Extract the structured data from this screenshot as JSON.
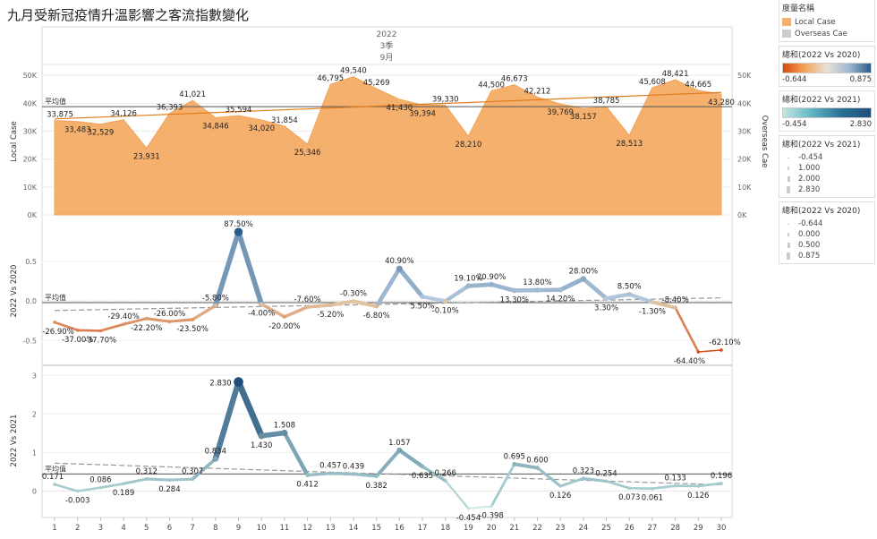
{
  "title": "九月受新冠疫情升溫影響之客流指數變化",
  "header": {
    "year": "2022",
    "quarter": "3季",
    "month": "9月"
  },
  "avg_label": "平均值",
  "colors": {
    "local_area": "#f5b06e",
    "local_area_line": "#f0a35c",
    "trend": "#e07b1a",
    "avg_line": "#555555",
    "overseas": "#cccccc"
  },
  "legend": {
    "measures_title": "度量名稱",
    "measures": [
      {
        "label": "Local Case",
        "color": "#f5b06e"
      },
      {
        "label": "Overseas Cae",
        "color": "#cccccc"
      }
    ],
    "gradient2020": {
      "title": "總和(2022 Vs 2020)",
      "min": "-0.644",
      "max": "0.875"
    },
    "gradient2021": {
      "title": "總和(2022 Vs 2021)",
      "min": "-0.454",
      "max": "2.830"
    },
    "size2021": {
      "title": "總和(2022 Vs 2021)",
      "items": [
        "-0.454",
        "1.000",
        "2.000",
        "2.830"
      ]
    },
    "size2020": {
      "title": "總和(2022 Vs 2020)",
      "items": [
        "-0.644",
        "0.000",
        "0.500",
        "0.875"
      ]
    }
  },
  "chart_data": [
    {
      "type": "area",
      "x": [
        1,
        2,
        3,
        4,
        5,
        6,
        7,
        8,
        9,
        10,
        11,
        12,
        13,
        14,
        15,
        16,
        17,
        18,
        19,
        20,
        21,
        22,
        23,
        24,
        25,
        26,
        27,
        28,
        29,
        30
      ],
      "series": [
        {
          "name": "Local Case",
          "values": [
            33875,
            33483,
            32529,
            34126,
            23931,
            36393,
            41021,
            34846,
            35594,
            34020,
            31854,
            25346,
            46795,
            49540,
            45269,
            41430,
            39394,
            39330,
            28210,
            44500,
            46673,
            42212,
            39769,
            38157,
            38785,
            28513,
            45608,
            48421,
            44665,
            43280
          ]
        }
      ],
      "labels": [
        "33,875",
        "33,483",
        "32,529",
        "34,126",
        "23,931",
        "36,393",
        "41,021",
        "34,846",
        "35,594",
        "34,020",
        "31,854",
        "25,346",
        "46,795",
        "49,540",
        "45,269",
        "41,430",
        "39,394",
        "39,330",
        "28,210",
        "44,500",
        "46,673",
        "42,212",
        "39,769",
        "38,157",
        "38,785",
        "28,513",
        "45,608",
        "48,421",
        "44,665",
        "43,280"
      ],
      "ylabel": "Local Case",
      "y2label": "Overseas Cae",
      "yticks": [
        "0K",
        "10K",
        "20K",
        "30K",
        "40K",
        "50K"
      ],
      "ylim": [
        0,
        52000
      ],
      "average": 38800,
      "trend": [
        34400,
        43900
      ]
    },
    {
      "type": "line",
      "x": [
        1,
        2,
        3,
        4,
        5,
        6,
        7,
        8,
        9,
        10,
        11,
        12,
        13,
        14,
        15,
        16,
        17,
        18,
        19,
        20,
        21,
        22,
        23,
        24,
        25,
        26,
        27,
        28,
        29,
        30
      ],
      "series": [
        {
          "name": "2022 Vs 2020",
          "values": [
            -0.269,
            -0.37,
            -0.377,
            -0.294,
            -0.222,
            -0.26,
            -0.235,
            -0.058,
            0.875,
            -0.04,
            -0.2,
            -0.076,
            -0.052,
            -0.003,
            -0.068,
            0.409,
            0.055,
            -0.001,
            0.191,
            0.209,
            0.133,
            0.138,
            0.142,
            0.28,
            0.033,
            0.085,
            -0.013,
            -0.084,
            -0.644,
            -0.621
          ]
        }
      ],
      "labels": [
        "-26.90%",
        "-37.00%",
        "-37.70%",
        "-29.40%",
        "-22.20%",
        "-26.00%",
        "-23.50%",
        "-5.80%",
        "87.50%",
        "-4.00%",
        "-20.00%",
        "-7.60%",
        "-5.20%",
        "-0.30%",
        "-6.80%",
        "40.90%",
        "5.50%",
        "-0.10%",
        "19.10%",
        "20.90%",
        "13.30%",
        "13.80%",
        "14.20%",
        "28.00%",
        "3.30%",
        "8.50%",
        "-1.30%",
        "-8.40%",
        "-64.40%",
        "-62.10%"
      ],
      "ylabel": "2022 Vs 2020",
      "yticks": [
        "-0.5",
        "0.0",
        "0.5"
      ],
      "ylim": [
        -0.78,
        1.0
      ],
      "average": -0.02,
      "trend": [
        -0.12,
        0.04
      ]
    },
    {
      "type": "line",
      "x": [
        1,
        2,
        3,
        4,
        5,
        6,
        7,
        8,
        9,
        10,
        11,
        12,
        13,
        14,
        15,
        16,
        17,
        18,
        19,
        20,
        21,
        22,
        23,
        24,
        25,
        26,
        27,
        28,
        29,
        30
      ],
      "xticks": [
        "1",
        "2",
        "3",
        "4",
        "5",
        "6",
        "7",
        "8",
        "9",
        "10",
        "11",
        "12",
        "13",
        "14",
        "15",
        "16",
        "17",
        "18",
        "19",
        "20",
        "21",
        "22",
        "23",
        "24",
        "25",
        "26",
        "27",
        "28",
        "29",
        "30"
      ],
      "series": [
        {
          "name": "2022 Vs 2021",
          "values": [
            0.171,
            -0.003,
            0.086,
            0.189,
            0.312,
            0.284,
            0.307,
            0.834,
            2.83,
            1.43,
            1.508,
            0.412,
            0.457,
            0.439,
            0.382,
            1.057,
            0.635,
            0.266,
            -0.454,
            -0.398,
            0.695,
            0.6,
            0.126,
            0.323,
            0.254,
            0.073,
            0.061,
            0.133,
            0.126,
            0.196
          ]
        }
      ],
      "labels": [
        "0.171",
        "-0.003",
        "0.086",
        "0.189",
        "0.312",
        "0.284",
        "0.307",
        "0.834",
        "2.830",
        "1.430",
        "1.508",
        "0.412",
        "0.457",
        "0.439",
        "0.382",
        "1.057",
        "0.635",
        "0.266",
        "-0.454",
        "-0.398",
        "0.695",
        "0.600",
        "0.126",
        "0.323",
        "0.254",
        "0.073",
        "0.061",
        "0.133",
        "0.126",
        "0.196"
      ],
      "ylabel": "2022 Vs 2021",
      "yticks": [
        "0",
        "1",
        "2",
        "3"
      ],
      "ylim": [
        -0.62,
        3.1
      ],
      "average": 0.44,
      "trend": [
        0.72,
        0.16
      ]
    }
  ]
}
